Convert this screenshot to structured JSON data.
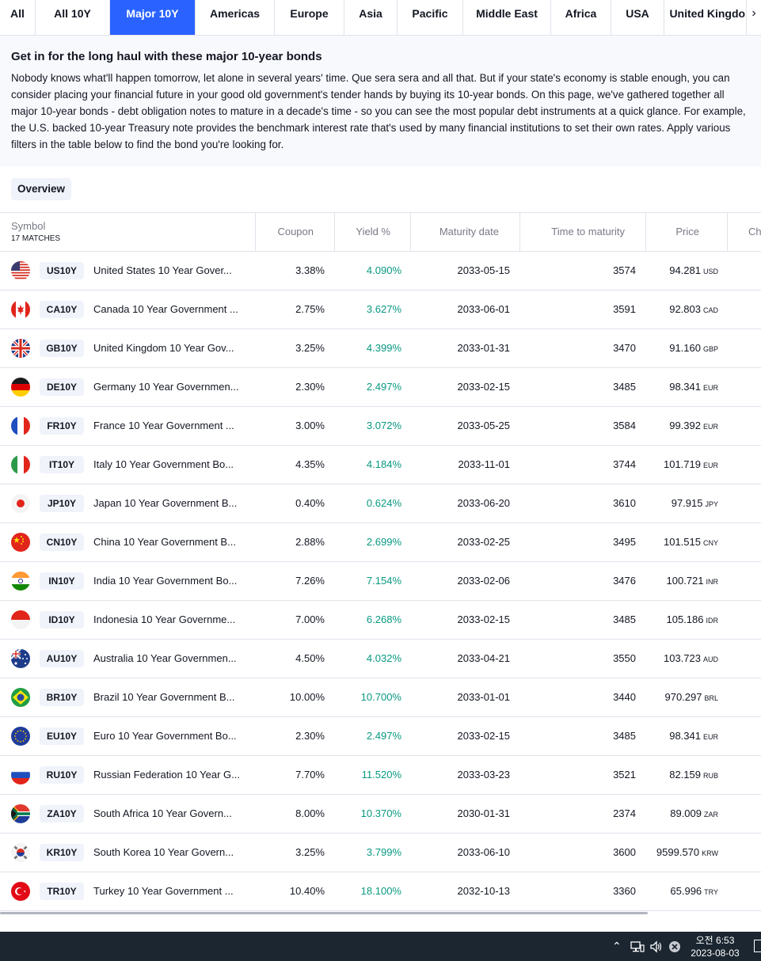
{
  "tabs": [
    {
      "label": "All",
      "active": false
    },
    {
      "label": "All 10Y",
      "active": false
    },
    {
      "label": "Major 10Y",
      "active": true
    },
    {
      "label": "Americas",
      "active": false
    },
    {
      "label": "Europe",
      "active": false
    },
    {
      "label": "Asia",
      "active": false
    },
    {
      "label": "Pacific",
      "active": false
    },
    {
      "label": "Middle East",
      "active": false
    },
    {
      "label": "Africa",
      "active": false
    },
    {
      "label": "USA",
      "active": false
    },
    {
      "label": "United Kingdom",
      "active": false
    }
  ],
  "tabs_more_icon": "chevron-right-icon",
  "intro": {
    "title": "Get in for the long haul with these major 10-year bonds",
    "body": "Nobody knows what'll happen tomorrow, let alone in several years' time. Que sera sera and all that. But if your state's economy is stable enough, you can consider placing your financial future in your good old government's tender hands by buying its 10-year bonds. On this page, we've gathered together all major 10-year bonds - debt obligation notes to mature in a decade's time - so you can see the most popular debt instruments at a quick glance. For example, the U.S. backed 10-year Treasury note provides the benchmark interest rate that's used by many financial institutions to set their own rates. Apply various filters in the table below to find the bond you're looking for."
  },
  "overview_label": "Overview",
  "table": {
    "headers": {
      "symbol": "Symbol",
      "matches": "17 MATCHES",
      "coupon": "Coupon",
      "yield": "Yield %",
      "maturity": "Maturity date",
      "ttm": "Time to maturity",
      "price": "Price",
      "change": "Ch"
    },
    "rows": [
      {
        "flag": "us",
        "ticker": "US10Y",
        "name": "United States 10 Year Gover...",
        "coupon": "3.38%",
        "yield": "4.090%",
        "maturity": "2033-05-15",
        "ttm": "3574",
        "price": "94.281",
        "cur": "USD"
      },
      {
        "flag": "ca",
        "ticker": "CA10Y",
        "name": "Canada 10 Year Government ...",
        "coupon": "2.75%",
        "yield": "3.627%",
        "maturity": "2033-06-01",
        "ttm": "3591",
        "price": "92.803",
        "cur": "CAD"
      },
      {
        "flag": "gb",
        "ticker": "GB10Y",
        "name": "United Kingdom 10 Year Gov...",
        "coupon": "3.25%",
        "yield": "4.399%",
        "maturity": "2033-01-31",
        "ttm": "3470",
        "price": "91.160",
        "cur": "GBP"
      },
      {
        "flag": "de",
        "ticker": "DE10Y",
        "name": "Germany 10 Year Governmen...",
        "coupon": "2.30%",
        "yield": "2.497%",
        "maturity": "2033-02-15",
        "ttm": "3485",
        "price": "98.341",
        "cur": "EUR"
      },
      {
        "flag": "fr",
        "ticker": "FR10Y",
        "name": "France 10 Year Government ...",
        "coupon": "3.00%",
        "yield": "3.072%",
        "maturity": "2033-05-25",
        "ttm": "3584",
        "price": "99.392",
        "cur": "EUR"
      },
      {
        "flag": "it",
        "ticker": "IT10Y",
        "name": "Italy 10 Year Government Bo...",
        "coupon": "4.35%",
        "yield": "4.184%",
        "maturity": "2033-11-01",
        "ttm": "3744",
        "price": "101.719",
        "cur": "EUR"
      },
      {
        "flag": "jp",
        "ticker": "JP10Y",
        "name": "Japan 10 Year Government B...",
        "coupon": "0.40%",
        "yield": "0.624%",
        "maturity": "2033-06-20",
        "ttm": "3610",
        "price": "97.915",
        "cur": "JPY"
      },
      {
        "flag": "cn",
        "ticker": "CN10Y",
        "name": "China 10 Year Government B...",
        "coupon": "2.88%",
        "yield": "2.699%",
        "maturity": "2033-02-25",
        "ttm": "3495",
        "price": "101.515",
        "cur": "CNY"
      },
      {
        "flag": "in",
        "ticker": "IN10Y",
        "name": "India 10 Year Government Bo...",
        "coupon": "7.26%",
        "yield": "7.154%",
        "maturity": "2033-02-06",
        "ttm": "3476",
        "price": "100.721",
        "cur": "INR"
      },
      {
        "flag": "id",
        "ticker": "ID10Y",
        "name": "Indonesia 10 Year Governme...",
        "coupon": "7.00%",
        "yield": "6.268%",
        "maturity": "2033-02-15",
        "ttm": "3485",
        "price": "105.186",
        "cur": "IDR"
      },
      {
        "flag": "au",
        "ticker": "AU10Y",
        "name": "Australia 10 Year Governmen...",
        "coupon": "4.50%",
        "yield": "4.032%",
        "maturity": "2033-04-21",
        "ttm": "3550",
        "price": "103.723",
        "cur": "AUD"
      },
      {
        "flag": "br",
        "ticker": "BR10Y",
        "name": "Brazil 10 Year Government B...",
        "coupon": "10.00%",
        "yield": "10.700%",
        "maturity": "2033-01-01",
        "ttm": "3440",
        "price": "970.297",
        "cur": "BRL"
      },
      {
        "flag": "eu",
        "ticker": "EU10Y",
        "name": "Euro 10 Year Government Bo...",
        "coupon": "2.30%",
        "yield": "2.497%",
        "maturity": "2033-02-15",
        "ttm": "3485",
        "price": "98.341",
        "cur": "EUR"
      },
      {
        "flag": "ru",
        "ticker": "RU10Y",
        "name": "Russian Federation 10 Year G...",
        "coupon": "7.70%",
        "yield": "11.520%",
        "maturity": "2033-03-23",
        "ttm": "3521",
        "price": "82.159",
        "cur": "RUB"
      },
      {
        "flag": "za",
        "ticker": "ZA10Y",
        "name": "South Africa 10 Year Govern...",
        "coupon": "8.00%",
        "yield": "10.370%",
        "maturity": "2030-01-31",
        "ttm": "2374",
        "price": "89.009",
        "cur": "ZAR"
      },
      {
        "flag": "kr",
        "ticker": "KR10Y",
        "name": "South Korea 10 Year Govern...",
        "coupon": "3.25%",
        "yield": "3.799%",
        "maturity": "2033-06-10",
        "ttm": "3600",
        "price": "9599.570",
        "cur": "KRW"
      },
      {
        "flag": "tr",
        "ticker": "TR10Y",
        "name": "Turkey 10 Year Government ...",
        "coupon": "10.40%",
        "yield": "18.100%",
        "maturity": "2032-10-13",
        "ttm": "3360",
        "price": "65.996",
        "cur": "TRY"
      }
    ]
  },
  "colors": {
    "accent": "#2962ff",
    "positive": "#089981",
    "border": "#e0e3eb",
    "muted": "#787b86",
    "taskbar": "#1b2631"
  },
  "taskbar": {
    "icons": [
      "chevron-up-icon",
      "network-icon",
      "volume-icon",
      "close-circle-icon"
    ],
    "time": "오전 6:53",
    "date": "2023-08-03"
  }
}
